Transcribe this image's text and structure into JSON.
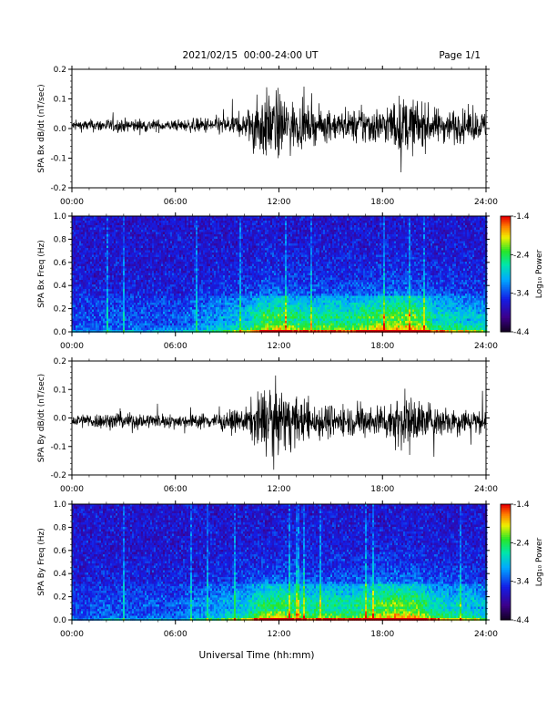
{
  "header": {
    "title": "2021/02/15  00:00-24:00 UT",
    "page": "Page 1/1"
  },
  "footer": {
    "xlabel": "Universal Time (hh:mm)"
  },
  "x_tick_labels": [
    "00:00",
    "06:00",
    "12:00",
    "18:00",
    "24:00"
  ],
  "colorbar": {
    "label": "Log₁₀ Power",
    "tick_labels": [
      "-1.4",
      "-2.4",
      "-3.4",
      "-4.4"
    ],
    "range": [
      -4.4,
      -1.4
    ]
  },
  "chart_data": [
    {
      "type": "line",
      "title": "",
      "ylabel": "SPA Bx dB/dt (nT/sec)",
      "xlabel": "",
      "xlim": [
        0,
        24
      ],
      "ylim": [
        -0.2,
        0.2
      ],
      "y_tick_labels": [
        "0.2",
        "0.1",
        "0.0",
        "-0.1",
        "-0.2"
      ],
      "envelope": {
        "x_hours": [
          0,
          2,
          4,
          6,
          8,
          10,
          10.5,
          11,
          12,
          13,
          14,
          15,
          16,
          17,
          18,
          19,
          20,
          21,
          22,
          23,
          24
        ],
        "amplitude": [
          0.03,
          0.04,
          0.04,
          0.03,
          0.05,
          0.07,
          0.15,
          0.2,
          0.2,
          0.13,
          0.1,
          0.09,
          0.08,
          0.12,
          0.1,
          0.17,
          0.15,
          0.1,
          0.1,
          0.09,
          0.08
        ]
      },
      "offset": 0.01,
      "color": "#000000"
    },
    {
      "type": "heatmap",
      "title": "",
      "ylabel": "SPA Bx Freq (Hz)",
      "xlabel": "",
      "xlim": [
        0,
        24
      ],
      "ylim": [
        0,
        1.0
      ],
      "y_tick_labels": [
        "1.0",
        "0.8",
        "0.6",
        "0.4",
        "0.2",
        "0.0"
      ],
      "z_range": [
        -4.4,
        -1.4
      ],
      "activity_hours": [
        0,
        2,
        4,
        6,
        8,
        10,
        11,
        12,
        13,
        14,
        15,
        16,
        17,
        18,
        19,
        20,
        21,
        22,
        23,
        24
      ],
      "activity": [
        0.15,
        0.2,
        0.2,
        0.2,
        0.35,
        0.5,
        0.75,
        0.8,
        0.7,
        0.65,
        0.7,
        0.65,
        0.75,
        0.85,
        0.9,
        0.85,
        0.6,
        0.55,
        0.5,
        0.45
      ]
    },
    {
      "type": "line",
      "title": "",
      "ylabel": "SPA By dB/dt (nT/sec)",
      "xlabel": "",
      "xlim": [
        0,
        24
      ],
      "ylim": [
        -0.2,
        0.2
      ],
      "y_tick_labels": [
        "0.2",
        "0.1",
        "0.0",
        "-0.1",
        "-0.2"
      ],
      "envelope": {
        "x_hours": [
          0,
          2,
          4,
          6,
          8,
          10,
          10.5,
          11,
          12,
          13,
          14,
          15,
          16,
          17,
          18,
          19,
          20,
          21,
          22,
          23,
          24
        ],
        "amplitude": [
          0.04,
          0.05,
          0.05,
          0.04,
          0.05,
          0.07,
          0.13,
          0.2,
          0.2,
          0.14,
          0.12,
          0.1,
          0.09,
          0.1,
          0.1,
          0.17,
          0.14,
          0.1,
          0.09,
          0.08,
          0.07
        ]
      },
      "offset": -0.01,
      "color": "#000000"
    },
    {
      "type": "heatmap",
      "title": "",
      "ylabel": "SPA By Freq (Hz)",
      "xlabel": "",
      "xlim": [
        0,
        24
      ],
      "ylim": [
        0,
        1.0
      ],
      "y_tick_labels": [
        "1.0",
        "0.8",
        "0.6",
        "0.4",
        "0.2",
        "0.0"
      ],
      "z_range": [
        -4.4,
        -1.4
      ],
      "activity_hours": [
        0,
        2,
        4,
        6,
        8,
        10,
        11,
        12,
        13,
        14,
        15,
        16,
        17,
        18,
        19,
        20,
        21,
        22,
        23,
        24
      ],
      "activity": [
        0.15,
        0.2,
        0.2,
        0.2,
        0.35,
        0.5,
        0.75,
        0.8,
        0.7,
        0.65,
        0.7,
        0.65,
        0.75,
        0.85,
        0.9,
        0.85,
        0.6,
        0.55,
        0.5,
        0.45
      ]
    }
  ]
}
